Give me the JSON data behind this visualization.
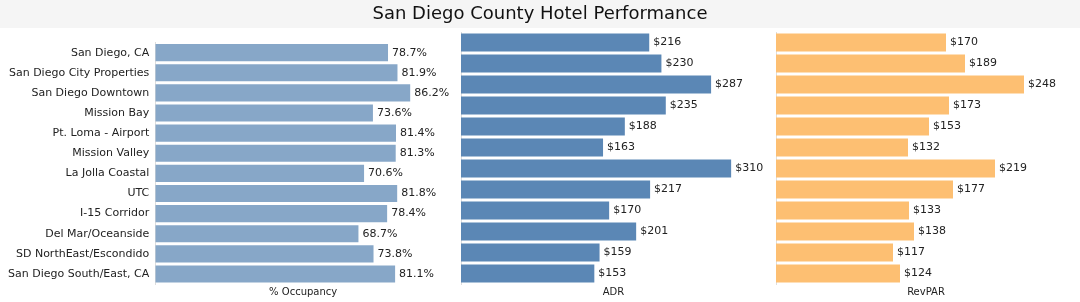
{
  "chart_data": [
    {
      "type": "other",
      "title": "San Diego County Hotel Performance"
    },
    {
      "type": "bar",
      "orientation": "horizontal",
      "xlabel": "% Occupancy",
      "tick_labels": "y",
      "categories": [
        "San Diego, CA",
        "San Diego City Properties",
        "San Diego Downtown",
        "Mission Bay",
        "Pt. Loma - Airport",
        "Mission Valley",
        "La Jolla Coastal",
        "UTC",
        "I-15 Corridor",
        "Del Mar/Oceanside",
        "SD NorthEast/Escondido",
        "San Diego South/East, CA"
      ],
      "values": [
        78.7,
        81.9,
        86.2,
        73.6,
        81.4,
        81.3,
        70.6,
        81.8,
        78.4,
        68.7,
        73.8,
        81.1
      ],
      "color": "#87a7c8",
      "value_labels": [
        "78.7%",
        "81.9%",
        "86.2%",
        "73.6%",
        "81.4%",
        "81.3%",
        "70.6%",
        "81.8%",
        "78.4%",
        "68.7%",
        "73.8%",
        "81.1%"
      ]
    },
    {
      "type": "bar",
      "orientation": "horizontal",
      "xlabel": "ADR",
      "tick_labels": false,
      "categories": [
        null,
        null,
        null,
        null,
        null,
        null,
        null,
        null,
        null,
        null,
        null,
        null
      ],
      "values": [
        216,
        230,
        287,
        235,
        188,
        163,
        310,
        217,
        170,
        201,
        159,
        153
      ],
      "color": "#5b87b5",
      "value_labels": [
        "$216",
        "$230",
        "$287",
        "$235",
        "$188",
        "$163",
        "$310",
        "$217",
        "$170",
        "$201",
        "$159",
        "$153"
      ]
    },
    {
      "type": "bar",
      "orientation": "horizontal",
      "xlabel": "RevPAR",
      "tick_labels": false,
      "categories": [
        null,
        null,
        null,
        null,
        null,
        null,
        null,
        null,
        null,
        null,
        null,
        null
      ],
      "values": [
        170,
        189,
        248,
        173,
        153,
        132,
        219,
        177,
        133,
        138,
        117,
        124
      ],
      "color": "#fdbf72",
      "value_labels": [
        "$170",
        "$189",
        "$248",
        "$173",
        "$153",
        "$132",
        "$219",
        "$177",
        "$133",
        "$138",
        "$117",
        "$124"
      ]
    }
  ]
}
